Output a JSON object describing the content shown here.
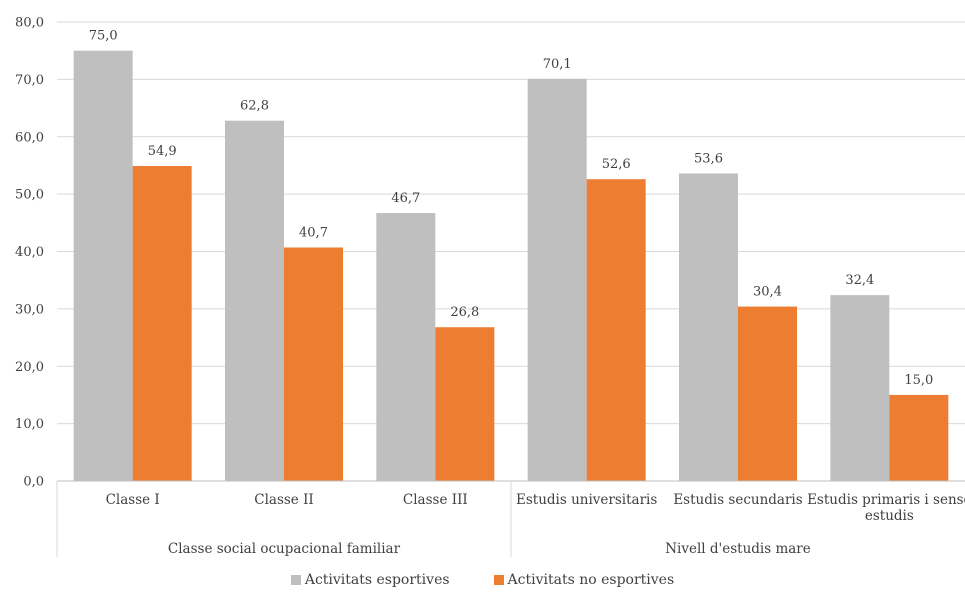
{
  "chart_data": {
    "type": "bar",
    "groups": [
      {
        "label": "Classe social ocupacional familiar",
        "categories": [
          "Classe I",
          "Classe II",
          "Classe III"
        ]
      },
      {
        "label": "Nivell d'estudis mare",
        "categories": [
          "Estudis universitaris",
          "Estudis secundaris",
          "Estudis primaris i sense estudis"
        ]
      }
    ],
    "categories": [
      "Classe I",
      "Classe II",
      "Classe III",
      "Estudis universitaris",
      "Estudis secundaris",
      "Estudis primaris i sense estudis"
    ],
    "series": [
      {
        "name": "Activitats esportives",
        "color": "#bfbfbf",
        "values": [
          75.0,
          62.8,
          46.7,
          70.1,
          53.6,
          32.4
        ]
      },
      {
        "name": "Activitats no esportives",
        "color": "#ed7d31",
        "values": [
          54.9,
          40.7,
          26.8,
          52.6,
          30.4,
          15.0
        ]
      }
    ],
    "ylim": [
      0,
      80
    ],
    "yticks": [
      0,
      10,
      20,
      30,
      40,
      50,
      60,
      70,
      80
    ],
    "grid": true,
    "legend": "bottom",
    "decimal_separator": ","
  }
}
